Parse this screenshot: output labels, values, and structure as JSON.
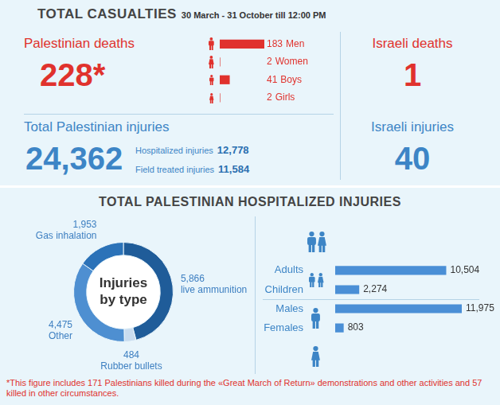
{
  "header": {
    "title": "TOTAL CASUALTIES",
    "subtitle": "30 March - 31 October till 12:00 PM"
  },
  "stats": {
    "palestinian_deaths": {
      "label": "Palestinian deaths",
      "value": "228*"
    },
    "israeli_deaths": {
      "label": "Israeli deaths",
      "value": "1"
    },
    "palestinian_injuries": {
      "label": "Total Palestinian injuries",
      "value": "24,362",
      "breakdown": [
        {
          "label": "Hospitalized injuries",
          "value": "12,778"
        },
        {
          "label": "Field treated injuries",
          "value": "11,584"
        }
      ]
    },
    "israeli_injuries": {
      "label": "Israeli injuries",
      "value": "40"
    }
  },
  "section_title": "TOTAL PALESTINIAN HOSPITALIZED INJURIES",
  "footnote": "*This figure includes 171 Palestinians killed during the «Great March of Return» demonstrations and other activities and 57 killed in other circumstances.",
  "chart_data": [
    {
      "type": "bar",
      "orientation": "horizontal",
      "categories": [
        "Men",
        "Women",
        "Boys",
        "Girls"
      ],
      "values": [
        183,
        2,
        41,
        2
      ],
      "color": "#e0322d",
      "xlim": [
        0,
        183
      ],
      "tick_labels": false,
      "grid": false,
      "data_labels": true
    },
    {
      "type": "doughnut",
      "title": "Injuries by type",
      "categories": [
        "live ammunition",
        "Rubber bullets",
        "Other",
        "Gas inhalation"
      ],
      "values": [
        5866,
        484,
        4475,
        1953
      ],
      "value_labels": [
        "5,866",
        "484",
        "4,475",
        "1,953"
      ],
      "colors": [
        "#1f5c99",
        "#c9dcef",
        "#4e8fd1",
        "#2b72b8"
      ],
      "data_labels": true
    },
    {
      "type": "bar",
      "orientation": "horizontal",
      "categories": [
        "Adults",
        "Children",
        "Males",
        "Females"
      ],
      "values": [
        10504,
        2274,
        11975,
        803
      ],
      "value_labels": [
        "10,504",
        "2,274",
        "11,975",
        "803"
      ],
      "color": "#4a8fd6",
      "xlim": [
        0,
        11975
      ],
      "tick_labels": "y",
      "grid": false,
      "data_labels": true
    }
  ]
}
